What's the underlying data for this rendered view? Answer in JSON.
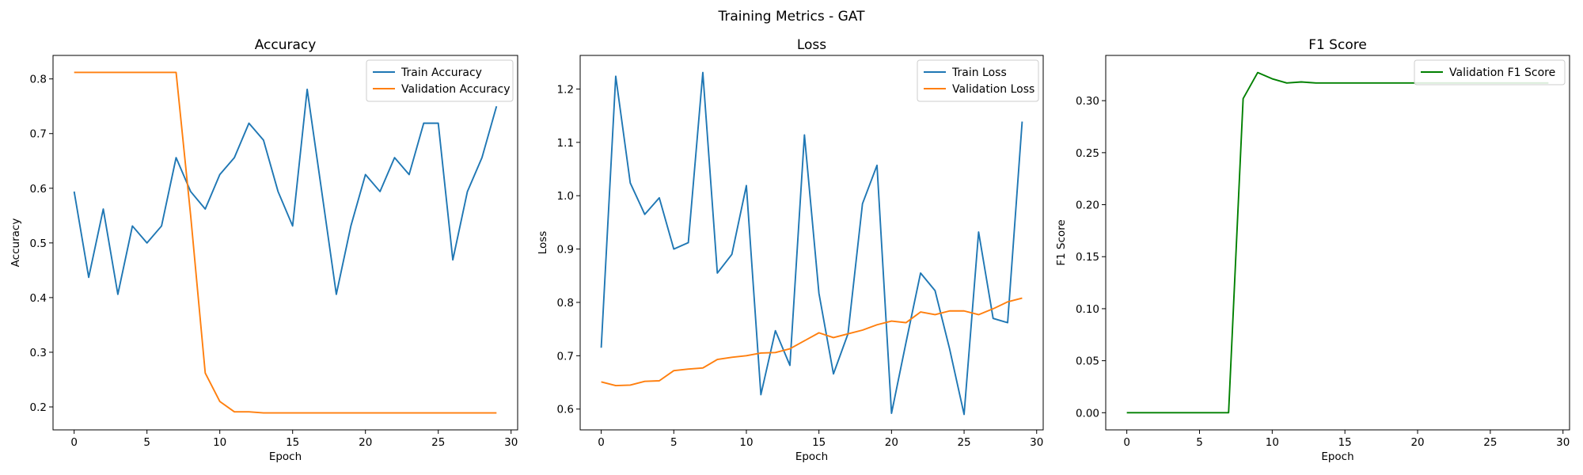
{
  "figure": {
    "title": "Training Metrics - GAT"
  },
  "chart_data": [
    {
      "type": "line",
      "title": "Accuracy",
      "xlabel": "Epoch",
      "ylabel": "Accuracy",
      "xlim": [
        -1.45,
        30.45
      ],
      "ylim": [
        0.158,
        0.843
      ],
      "xticks": [
        0,
        5,
        10,
        15,
        20,
        25,
        30
      ],
      "yticks": [
        0.2,
        0.3,
        0.4,
        0.5,
        0.6,
        0.7,
        0.8
      ],
      "ytick_decimals": 1,
      "grid": false,
      "legend": "upper right",
      "x": [
        0,
        1,
        2,
        3,
        4,
        5,
        6,
        7,
        8,
        9,
        10,
        11,
        12,
        13,
        14,
        15,
        16,
        17,
        18,
        19,
        20,
        21,
        22,
        23,
        24,
        25,
        26,
        27,
        28,
        29
      ],
      "series": [
        {
          "name": "Train Accuracy",
          "color": "#1f77b4",
          "values": [
            0.594,
            0.437,
            0.562,
            0.406,
            0.531,
            0.5,
            0.531,
            0.656,
            0.594,
            0.562,
            0.625,
            0.656,
            0.719,
            0.688,
            0.594,
            0.531,
            0.781,
            0.594,
            0.406,
            0.531,
            0.625,
            0.594,
            0.656,
            0.625,
            0.719,
            0.719,
            0.469,
            0.594,
            0.656,
            0.75
          ]
        },
        {
          "name": "Validation Accuracy",
          "color": "#ff7f0e",
          "values": [
            0.812,
            0.812,
            0.812,
            0.812,
            0.812,
            0.812,
            0.812,
            0.812,
            0.55,
            0.262,
            0.21,
            0.191,
            0.191,
            0.189,
            0.189,
            0.189,
            0.189,
            0.189,
            0.189,
            0.189,
            0.189,
            0.189,
            0.189,
            0.189,
            0.189,
            0.189,
            0.189,
            0.189,
            0.189,
            0.189
          ]
        }
      ]
    },
    {
      "type": "line",
      "title": "Loss",
      "xlabel": "Epoch",
      "ylabel": "Loss",
      "xlim": [
        -1.45,
        30.45
      ],
      "ylim": [
        0.561,
        1.263
      ],
      "xticks": [
        0,
        5,
        10,
        15,
        20,
        25,
        30
      ],
      "yticks": [
        0.6,
        0.7,
        0.8,
        0.9,
        1.0,
        1.1,
        1.2
      ],
      "ytick_decimals": 1,
      "grid": false,
      "legend": "upper right",
      "x": [
        0,
        1,
        2,
        3,
        4,
        5,
        6,
        7,
        8,
        9,
        10,
        11,
        12,
        13,
        14,
        15,
        16,
        17,
        18,
        19,
        20,
        21,
        22,
        23,
        24,
        25,
        26,
        27,
        28,
        29
      ],
      "series": [
        {
          "name": "Train Loss",
          "color": "#1f77b4",
          "values": [
            0.715,
            1.224,
            1.024,
            0.965,
            0.996,
            0.9,
            0.912,
            1.231,
            0.855,
            0.89,
            1.019,
            0.627,
            0.747,
            0.682,
            1.114,
            0.817,
            0.666,
            0.741,
            0.985,
            1.057,
            0.592,
            0.725,
            0.855,
            0.822,
            0.713,
            0.59,
            0.932,
            0.77,
            0.762,
            1.139
          ]
        },
        {
          "name": "Validation Loss",
          "color": "#ff7f0e",
          "values": [
            0.651,
            0.644,
            0.645,
            0.652,
            0.653,
            0.672,
            0.675,
            0.677,
            0.693,
            0.697,
            0.7,
            0.705,
            0.706,
            0.713,
            0.728,
            0.743,
            0.734,
            0.741,
            0.748,
            0.758,
            0.765,
            0.762,
            0.782,
            0.777,
            0.784,
            0.784,
            0.777,
            0.788,
            0.801,
            0.808
          ]
        }
      ]
    },
    {
      "type": "line",
      "title": "F1 Score",
      "xlabel": "Epoch",
      "ylabel": "F1 Score",
      "xlim": [
        -1.45,
        30.45
      ],
      "ylim": [
        -0.0165,
        0.3435
      ],
      "xticks": [
        0,
        5,
        10,
        15,
        20,
        25,
        30
      ],
      "yticks": [
        0.0,
        0.05,
        0.1,
        0.15,
        0.2,
        0.25,
        0.3
      ],
      "ytick_decimals": 2,
      "grid": false,
      "legend": "upper right",
      "x": [
        0,
        1,
        2,
        3,
        4,
        5,
        6,
        7,
        8,
        9,
        10,
        11,
        12,
        13,
        14,
        15,
        16,
        17,
        18,
        19,
        20,
        21,
        22,
        23,
        24,
        25,
        26,
        27,
        28,
        29
      ],
      "series": [
        {
          "name": "Validation F1 Score",
          "color": "#008000",
          "values": [
            0,
            0,
            0,
            0,
            0,
            0,
            0,
            0,
            0.302,
            0.327,
            0.321,
            0.317,
            0.318,
            0.317,
            0.317,
            0.317,
            0.317,
            0.317,
            0.317,
            0.317,
            0.317,
            0.317,
            0.317,
            0.317,
            0.317,
            0.317,
            0.317,
            0.317,
            0.317,
            0.317
          ]
        }
      ]
    }
  ]
}
